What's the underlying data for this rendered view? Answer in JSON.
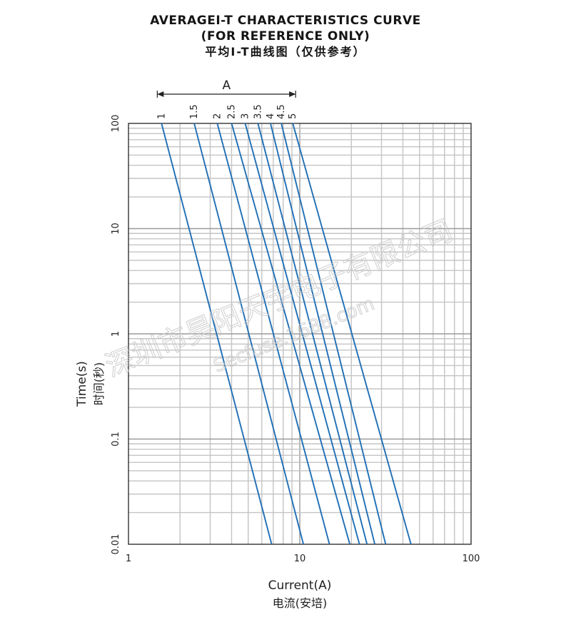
{
  "title": {
    "line1": "AVERAGEI-T CHARACTERISTICS CURVE",
    "line2": "(FOR REFERENCE ONLY)",
    "line3": "平均I-T曲线图（仅供参考）"
  },
  "watermark": {
    "line1": "深圳市昊阳天宇电子有限公司",
    "line2": "Secfuse.1688.com"
  },
  "chart_data": {
    "type": "line",
    "title": "AVERAGEI-T CHARACTERISTICS CURVE",
    "xlabel": "Current(A)",
    "xlabel_cn": "电流(安培)",
    "ylabel": "Time(s)",
    "ylabel_cn": "时间(秒)",
    "x_scale": "log",
    "y_scale": "log",
    "xlim": [
      1,
      100
    ],
    "ylim": [
      0.01,
      100
    ],
    "x_ticks": [
      "1",
      "10",
      "100"
    ],
    "y_ticks": [
      "100",
      "10",
      "1",
      "0.1",
      "0.01"
    ],
    "grid": true,
    "line_color": "#1f6fb5",
    "rating_label": "A",
    "series": [
      {
        "name": "1",
        "points": [
          [
            1.56,
            100
          ],
          [
            6.85,
            0.01
          ]
        ]
      },
      {
        "name": "1.5",
        "points": [
          [
            2.42,
            100
          ],
          [
            10.5,
            0.01
          ]
        ]
      },
      {
        "name": "2",
        "points": [
          [
            3.3,
            100
          ],
          [
            14.9,
            0.01
          ]
        ]
      },
      {
        "name": "2.5",
        "points": [
          [
            4.0,
            100
          ],
          [
            19.6,
            0.01
          ]
        ]
      },
      {
        "name": "3",
        "points": [
          [
            4.8,
            100
          ],
          [
            22.3,
            0.01
          ]
        ]
      },
      {
        "name": "3.5",
        "points": [
          [
            5.7,
            100
          ],
          [
            24.7,
            0.01
          ]
        ]
      },
      {
        "name": "4",
        "points": [
          [
            6.75,
            100
          ],
          [
            27.4,
            0.01
          ]
        ]
      },
      {
        "name": "4.5",
        "points": [
          [
            7.8,
            100
          ],
          [
            31.7,
            0.01
          ]
        ]
      },
      {
        "name": "5",
        "points": [
          [
            9.1,
            100
          ],
          [
            44.6,
            0.01
          ]
        ]
      }
    ]
  }
}
